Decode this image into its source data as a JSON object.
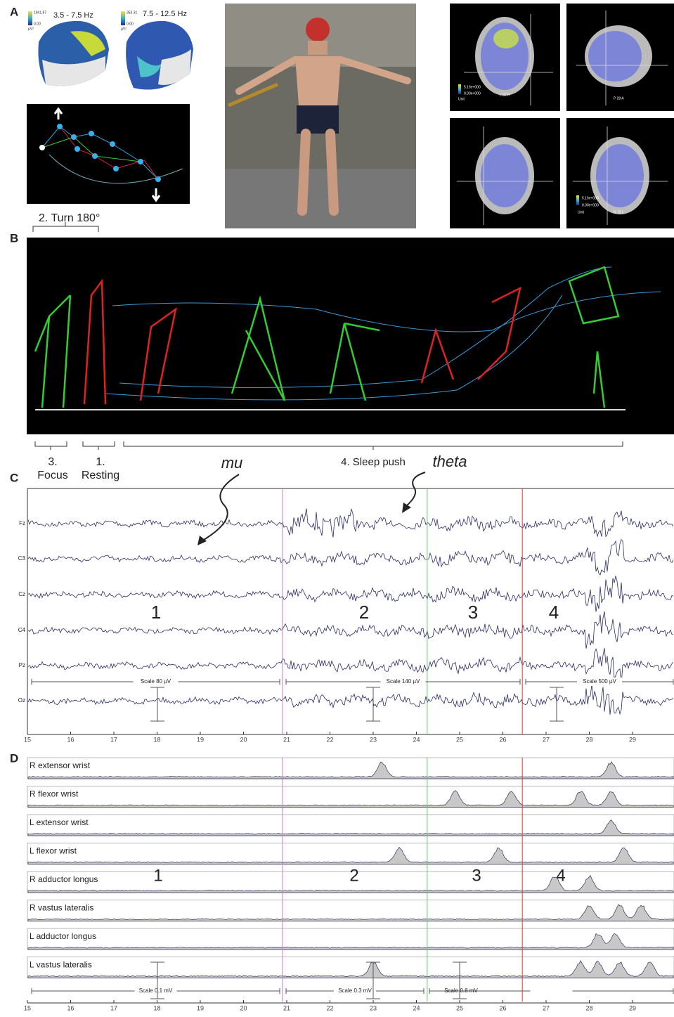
{
  "panel_labels": [
    "A",
    "B",
    "C",
    "D"
  ],
  "panel_a": {
    "maps": [
      {
        "band": "3.5 - 7.5 Hz",
        "max": "1941.87",
        "min": "0.00",
        "unit": "µV²"
      },
      {
        "band": "7.5 - 12.5 Hz",
        "max": "353.31",
        "min": "0.00",
        "unit": "µV²"
      }
    ],
    "mri": {
      "top_left": {
        "max": "5.16e+000",
        "min": "0.00e+000",
        "unit": "Unit",
        "orientation": "L  52  R"
      },
      "top_right": {
        "orientation": "P  28  A"
      },
      "bottom_right": {
        "max": "5.16e+000",
        "min": "0.00e+000",
        "unit": "Unit",
        "orientation": "R  72  L"
      }
    }
  },
  "panel_b": {
    "turn": "2. Turn 180°",
    "phases": [
      {
        "number": "3.",
        "name": "Focus"
      },
      {
        "number": "1.",
        "name": "Resting"
      },
      {
        "name": "4. Sleep push"
      }
    ]
  },
  "panel_c": {
    "annotations": [
      "mu",
      "theta"
    ],
    "channels": [
      "Fz",
      "C3",
      "Cz",
      "C4",
      "Pz",
      "Oz"
    ],
    "segments": [
      "1",
      "2",
      "3",
      "4"
    ],
    "scales": [
      "Scale 80 µV",
      "Scale 140 µV",
      "Scale 500 µV"
    ],
    "xticks": [
      15,
      16,
      17,
      18,
      19,
      20,
      21,
      22,
      23,
      24,
      25,
      26,
      27,
      28,
      29
    ]
  },
  "panel_d": {
    "muscles": [
      "R extensor wrist",
      "R flexor wrist",
      "L extensor wrist",
      "L flexor wrist",
      "R adductor longus",
      "R vastus lateralis",
      "L adductor longus",
      "L vastus lateralis"
    ],
    "segments": [
      "1",
      "2",
      "3",
      "4"
    ],
    "scales": [
      "Scale 0.1 mV",
      "Scale 0.3 mV",
      "Scale 0.8 mV"
    ],
    "xticks": [
      15,
      16,
      17,
      18,
      19,
      20,
      21,
      22,
      23,
      24,
      25,
      26,
      27,
      28,
      29
    ]
  }
}
